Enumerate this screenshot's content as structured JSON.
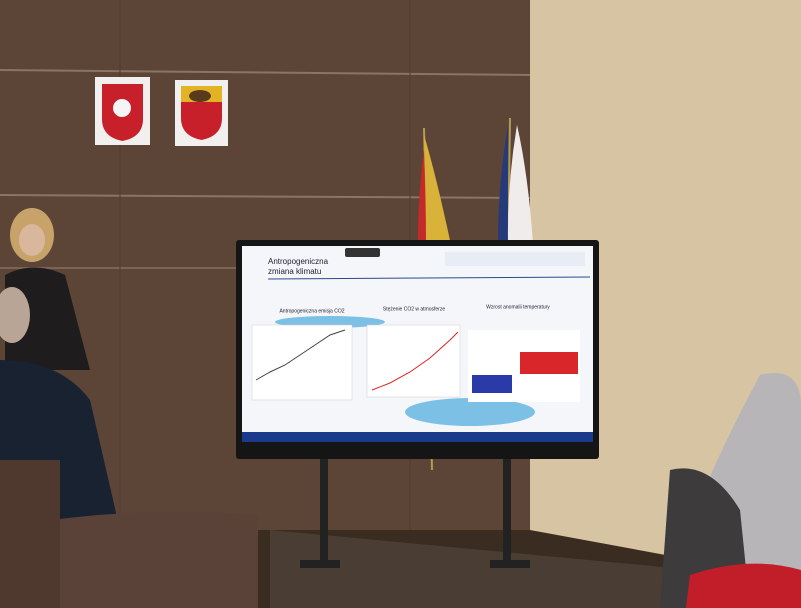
{
  "screen": {
    "title_lines": [
      "Antropogeniczna",
      "zmiana klimatu"
    ],
    "panel_titles": [
      "Antropogeniczna emisja CO2",
      "Stężenie CO2 w atmosferze",
      "Wzrost anomalii temperatury"
    ]
  }
}
